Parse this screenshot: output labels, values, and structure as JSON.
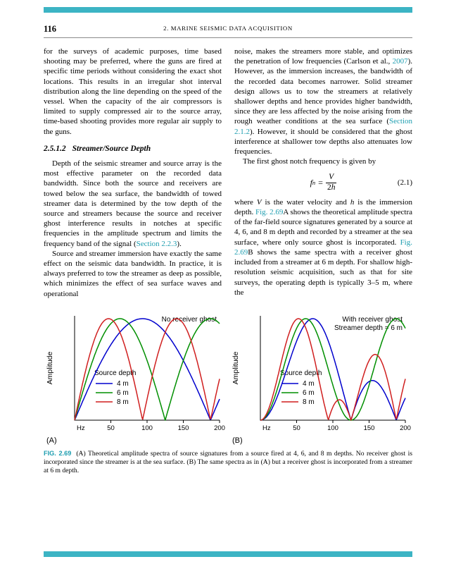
{
  "colors": {
    "accent_bar": "#3cb4c4",
    "link": "#1e9eb0",
    "series_blue": "#0000cd",
    "series_green": "#008f00",
    "series_red": "#d01f1f"
  },
  "page": {
    "number": "116",
    "running_head": "2. MARINE SEISMIC DATA ACQUISITION"
  },
  "body": {
    "left": {
      "p1": [
        {
          "t": "for the surveys of academic purposes, time based shooting may be preferred, where the guns are fired at specific time periods without considering the exact shot locations. This results in an irregular shot interval distribution along the line depending on the speed of the vessel. When the capacity of the air compressors is limited to supply compressed air to the source array, time-based shooting provides more regular air supply to the guns."
        }
      ],
      "heading_number": "2.5.1.2",
      "heading_text": "Streamer/Source Depth",
      "p2": [
        {
          "t": "Depth of the seismic streamer and source array is the most effective parameter on the recorded data bandwidth. Since both the source and receivers are towed below the sea surface, the bandwidth of towed streamer data is determined by the tow depth of the source and streamers because the source and receiver ghost interference results in notches at specific frequencies in the amplitude spectrum and limits the frequency band of the signal ("
        },
        {
          "t": "Section 2.2.3",
          "s": "link"
        },
        {
          "t": ")."
        }
      ],
      "p3": [
        {
          "t": "Source and streamer immersion have exactly the same effect on the seismic data bandwidth. In practice, it is always preferred to tow the streamer as deep as possible, which minimizes the effect of sea surface waves and operational"
        }
      ]
    },
    "right": {
      "p1": [
        {
          "t": "noise, makes the streamers more stable, and optimizes the penetration of low frequencies (Carlson et al., "
        },
        {
          "t": "2007",
          "s": "link"
        },
        {
          "t": "). However, as the immersion increases, the bandwidth of the recorded data becomes narrower. Solid streamer design allows us to tow the streamers at relatively shallower depths and hence provides higher bandwidth, since they are less affected by the noise arising from the rough weather conditions at the sea surface ("
        },
        {
          "t": "Section 2.1.2",
          "s": "link"
        },
        {
          "t": "). However, it should be considered that the ghost interference at shallower tow depths also attenuates low frequencies."
        }
      ],
      "p2_intro": "The first ghost notch frequency is given by",
      "equation": {
        "lhs": "f",
        "lhs_sub": "n",
        "equals": "=",
        "numerator": "V",
        "den_coeff": "2",
        "den_var": "h",
        "number": "(2.1)"
      },
      "p3": [
        {
          "t": "where "
        },
        {
          "t": "V",
          "s": "i"
        },
        {
          "t": " is the water velocity and "
        },
        {
          "t": "h",
          "s": "i"
        },
        {
          "t": " is the immersion depth. "
        },
        {
          "t": "Fig. 2.69",
          "s": "link"
        },
        {
          "t": "A shows the theoretical amplitude spectra of the far-field source signatures generated by a source at 4, 6, and 8 m depth and recorded by a streamer at the sea surface, where only source ghost is incorporated. "
        },
        {
          "t": "Fig. 2.69",
          "s": "link"
        },
        {
          "t": "B shows the same spectra with a receiver ghost included from a streamer at 6 m depth. For shallow high-resolution seismic acquisition, such as that for site surveys, the operating depth is typically 3–5 m, where the"
        }
      ]
    }
  },
  "figure": {
    "caption_label": "FIG. 2.69",
    "caption_text": "(A) Theoretical amplitude spectra of source signatures from a source fired at 4, 6, and 8 m depths. No receiver ghost is incorporated since the streamer is at the sea surface. (B) The same spectra as in (A) but a receiver ghost is incorporated from a streamer at 6 m depth."
  },
  "chart_data": [
    {
      "type": "line",
      "panel_label": "(A)",
      "title_lines": [
        "No receiver ghost"
      ],
      "xlabel": "Hz",
      "ylabel": "Amplitude",
      "x_min": 0,
      "x_max": 200,
      "x_ticks": [
        50,
        100,
        150,
        200
      ],
      "legend_title": "Source depth",
      "legend_position": "lower-left-inside",
      "grid": false,
      "water_velocity_mps": 1500,
      "receiver_depth_m": null,
      "model": "amplitude(f) = |sin(pi * f * source_depth / (V/2))|, each curve normalized to 1",
      "x_samples_hz": [
        0,
        10,
        20,
        30,
        40,
        50,
        60,
        70,
        80,
        90,
        100,
        110,
        120,
        130,
        140,
        150,
        160,
        170,
        180,
        190,
        200
      ],
      "series": [
        {
          "name": "4 m",
          "color": "#0000cd",
          "source_depth_m": 4,
          "ghost_notches_hz": [
            187.5
          ],
          "peaks_hz": [
            93.75
          ],
          "values": [
            0,
            0.167,
            0.329,
            0.482,
            0.621,
            0.743,
            0.845,
            0.922,
            0.974,
            0.998,
            0.995,
            0.963,
            0.905,
            0.821,
            0.715,
            0.588,
            0.445,
            0.289,
            0.125,
            0.042,
            0.208
          ]
        },
        {
          "name": "6 m",
          "color": "#008f00",
          "source_depth_m": 6,
          "ghost_notches_hz": [
            125
          ],
          "peaks_hz": [
            62.5,
            187.5
          ],
          "values": [
            0,
            0.249,
            0.482,
            0.685,
            0.845,
            0.951,
            0.998,
            0.982,
            0.905,
            0.771,
            0.588,
            0.368,
            0.125,
            0.125,
            0.368,
            0.588,
            0.771,
            0.905,
            0.982,
            0.998,
            0.951
          ]
        },
        {
          "name": "8 m",
          "color": "#d01f1f",
          "source_depth_m": 8,
          "ghost_notches_hz": [
            93.75,
            187.5
          ],
          "peaks_hz": [
            46.9,
            140.6
          ],
          "values": [
            0,
            0.329,
            0.621,
            0.845,
            0.974,
            0.995,
            0.905,
            0.715,
            0.445,
            0.125,
            0.208,
            0.517,
            0.771,
            0.937,
            1.0,
            0.951,
            0.797,
            0.552,
            0.249,
            0.084,
            0.407
          ]
        }
      ]
    },
    {
      "type": "line",
      "panel_label": "(B)",
      "title_lines": [
        "With receiver ghost",
        "Streamer depth = 6 m"
      ],
      "xlabel": "Hz",
      "ylabel": "Amplitude",
      "x_min": 0,
      "x_max": 200,
      "x_ticks": [
        50,
        100,
        150,
        200
      ],
      "legend_title": "Source depth",
      "legend_position": "lower-left-inside",
      "grid": false,
      "water_velocity_mps": 1500,
      "receiver_depth_m": 6,
      "model": "amplitude(f) = |sin(pi * f * source_depth / (V/2))| * |sin(pi * f * receiver_depth / (V/2))|, each curve normalized to 1",
      "x_samples_hz": [
        0,
        10,
        20,
        30,
        40,
        50,
        60,
        70,
        80,
        90,
        100,
        110,
        120,
        130,
        140,
        150,
        160,
        170,
        180,
        190,
        200
      ],
      "series": [
        {
          "name": "4 m",
          "color": "#0000cd",
          "source_depth_m": 4,
          "ghost_notches_hz": [
            125,
            187.5
          ],
          "values": [
            0,
            0.046,
            0.175,
            0.365,
            0.58,
            0.78,
            0.931,
            1.0,
            0.973,
            0.85,
            0.646,
            0.391,
            0.125,
            0.113,
            0.291,
            0.382,
            0.379,
            0.289,
            0.136,
            0.046,
            0.218
          ]
        },
        {
          "name": "6 m",
          "color": "#008f00",
          "source_depth_m": 6,
          "ghost_notches_hz": [
            125
          ],
          "values": [
            0,
            0.062,
            0.233,
            0.471,
            0.717,
            0.908,
            1.0,
            0.968,
            0.822,
            0.597,
            0.347,
            0.136,
            0.016,
            0.016,
            0.136,
            0.347,
            0.597,
            0.822,
            0.968,
            1.0,
            0.908
          ]
        },
        {
          "name": "8 m",
          "color": "#d01f1f",
          "source_depth_m": 8,
          "ghost_notches_hz": [
            93.75,
            125,
            187.5
          ],
          "values": [
            0,
            0.087,
            0.316,
            0.612,
            0.87,
            1.0,
            0.954,
            0.742,
            0.426,
            0.102,
            0.129,
            0.201,
            0.102,
            0.124,
            0.389,
            0.591,
            0.649,
            0.528,
            0.258,
            0.089,
            0.409
          ]
        }
      ]
    }
  ]
}
